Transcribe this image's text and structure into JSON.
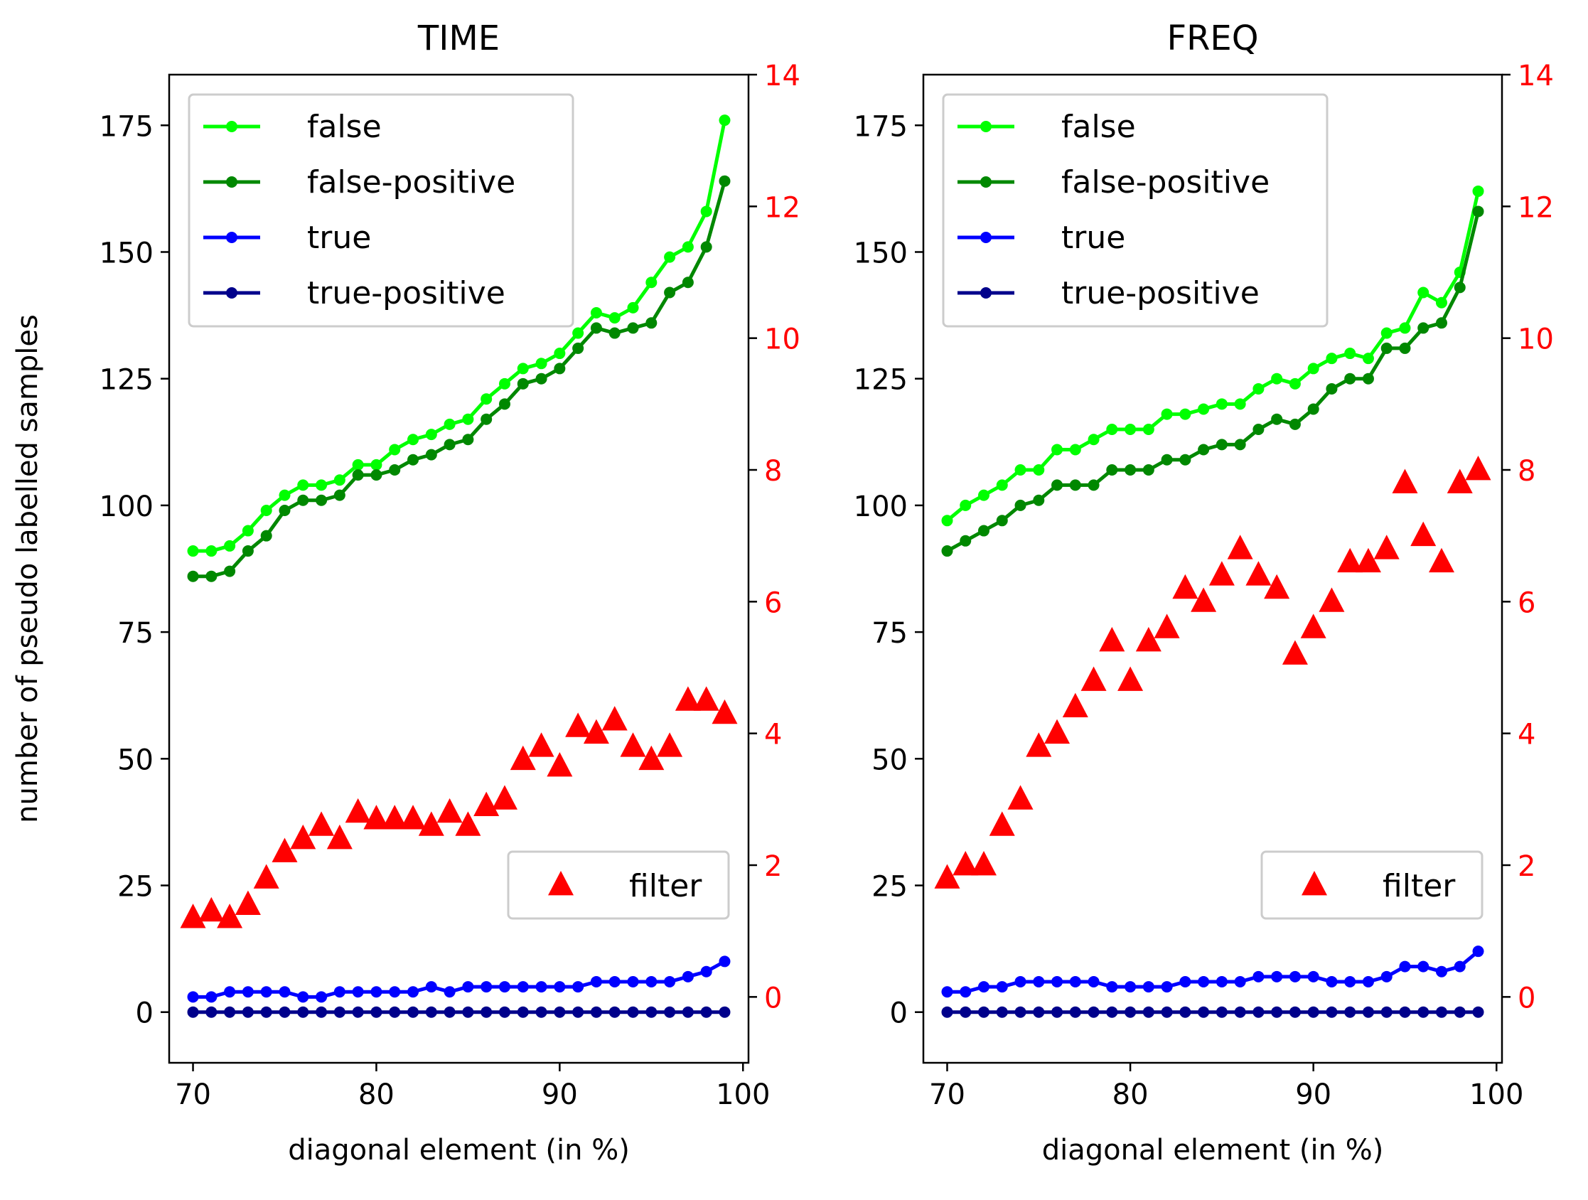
{
  "chart_data": [
    {
      "type": "line",
      "title": "TIME",
      "xlabel": "diagonal element (in %)",
      "ylabel": "number of pseudo labelled samples",
      "xlim": [
        68.7,
        100.3
      ],
      "ylim": [
        -10,
        185
      ],
      "y2lim": [
        -1,
        14
      ],
      "xticks": [
        70,
        80,
        90,
        100
      ],
      "yticks": [
        0,
        25,
        50,
        75,
        100,
        125,
        150,
        175
      ],
      "y2ticks": [
        0,
        2,
        4,
        6,
        8,
        10,
        12,
        14
      ],
      "legend_position": "upper-left",
      "legend2_position": "lower-right",
      "x": [
        70,
        71,
        72,
        73,
        74,
        75,
        76,
        77,
        78,
        79,
        80,
        81,
        82,
        83,
        84,
        85,
        86,
        87,
        88,
        89,
        90,
        91,
        92,
        93,
        94,
        95,
        96,
        97,
        98,
        99
      ],
      "series": [
        {
          "name": "false",
          "color": "#00ff00",
          "values": [
            91,
            91,
            92,
            95,
            99,
            102,
            104,
            104,
            105,
            108,
            108,
            111,
            113,
            114,
            116,
            117,
            121,
            124,
            127,
            128,
            130,
            134,
            138,
            137,
            139,
            144,
            149,
            151,
            158,
            176
          ]
        },
        {
          "name": "false-positive",
          "color": "#008800",
          "values": [
            86,
            86,
            87,
            91,
            94,
            99,
            101,
            101,
            102,
            106,
            106,
            107,
            109,
            110,
            112,
            113,
            117,
            120,
            124,
            125,
            127,
            131,
            135,
            134,
            135,
            136,
            142,
            144,
            151,
            164
          ]
        },
        {
          "name": "true",
          "color": "#0000ff",
          "values": [
            3,
            3,
            4,
            4,
            4,
            4,
            3,
            3,
            4,
            4,
            4,
            4,
            4,
            5,
            4,
            5,
            5,
            5,
            5,
            5,
            5,
            5,
            6,
            6,
            6,
            6,
            6,
            7,
            8,
            10
          ]
        },
        {
          "name": "true-positive",
          "color": "#00008b",
          "values": [
            0,
            0,
            0,
            0,
            0,
            0,
            0,
            0,
            0,
            0,
            0,
            0,
            0,
            0,
            0,
            0,
            0,
            0,
            0,
            0,
            0,
            0,
            0,
            0,
            0,
            0,
            0,
            0,
            0,
            0
          ]
        }
      ],
      "secondary_series": {
        "name": "filter",
        "type": "scatter",
        "color": "#ff0000",
        "axis": "right",
        "values": [
          1.2,
          1.3,
          1.2,
          1.4,
          1.8,
          2.2,
          2.4,
          2.6,
          2.4,
          2.8,
          2.7,
          2.7,
          2.7,
          2.6,
          2.8,
          2.6,
          2.9,
          3.0,
          3.6,
          3.8,
          3.5,
          4.1,
          4.0,
          4.2,
          3.8,
          3.6,
          3.8,
          4.5,
          4.5,
          4.3
        ]
      }
    },
    {
      "type": "line",
      "title": "FREQ",
      "xlabel": "diagonal element (in %)",
      "ylabel": "",
      "xlim": [
        68.7,
        100.3
      ],
      "ylim": [
        -10,
        185
      ],
      "y2lim": [
        -1,
        14
      ],
      "xticks": [
        70,
        80,
        90,
        100
      ],
      "yticks": [
        0,
        25,
        50,
        75,
        100,
        125,
        150,
        175
      ],
      "y2ticks": [
        0,
        2,
        4,
        6,
        8,
        10,
        12,
        14
      ],
      "legend_position": "upper-left",
      "legend2_position": "lower-right",
      "x": [
        70,
        71,
        72,
        73,
        74,
        75,
        76,
        77,
        78,
        79,
        80,
        81,
        82,
        83,
        84,
        85,
        86,
        87,
        88,
        89,
        90,
        91,
        92,
        93,
        94,
        95,
        96,
        97,
        98,
        99
      ],
      "series": [
        {
          "name": "false",
          "color": "#00ff00",
          "values": [
            97,
            100,
            102,
            104,
            107,
            107,
            111,
            111,
            113,
            115,
            115,
            115,
            118,
            118,
            119,
            120,
            120,
            123,
            125,
            124,
            127,
            129,
            130,
            129,
            134,
            135,
            142,
            140,
            146,
            162
          ]
        },
        {
          "name": "false-positive",
          "color": "#008800",
          "values": [
            91,
            93,
            95,
            97,
            100,
            101,
            104,
            104,
            104,
            107,
            107,
            107,
            109,
            109,
            111,
            112,
            112,
            115,
            117,
            116,
            119,
            123,
            125,
            125,
            131,
            131,
            135,
            136,
            143,
            158
          ]
        },
        {
          "name": "true",
          "color": "#0000ff",
          "values": [
            4,
            4,
            5,
            5,
            6,
            6,
            6,
            6,
            6,
            5,
            5,
            5,
            5,
            6,
            6,
            6,
            6,
            7,
            7,
            7,
            7,
            6,
            6,
            6,
            7,
            9,
            9,
            8,
            9,
            12
          ]
        },
        {
          "name": "true-positive",
          "color": "#00008b",
          "values": [
            0,
            0,
            0,
            0,
            0,
            0,
            0,
            0,
            0,
            0,
            0,
            0,
            0,
            0,
            0,
            0,
            0,
            0,
            0,
            0,
            0,
            0,
            0,
            0,
            0,
            0,
            0,
            0,
            0,
            0
          ]
        }
      ],
      "secondary_series": {
        "name": "filter",
        "type": "scatter",
        "color": "#ff0000",
        "axis": "right",
        "values": [
          1.8,
          2.0,
          2.0,
          2.6,
          3.0,
          3.8,
          4.0,
          4.4,
          4.8,
          5.4,
          4.8,
          5.4,
          5.6,
          6.2,
          6.0,
          6.4,
          6.8,
          6.4,
          6.2,
          5.2,
          5.6,
          6.0,
          6.6,
          6.6,
          6.8,
          7.8,
          7.0,
          6.6,
          7.8,
          8.0
        ]
      }
    }
  ]
}
